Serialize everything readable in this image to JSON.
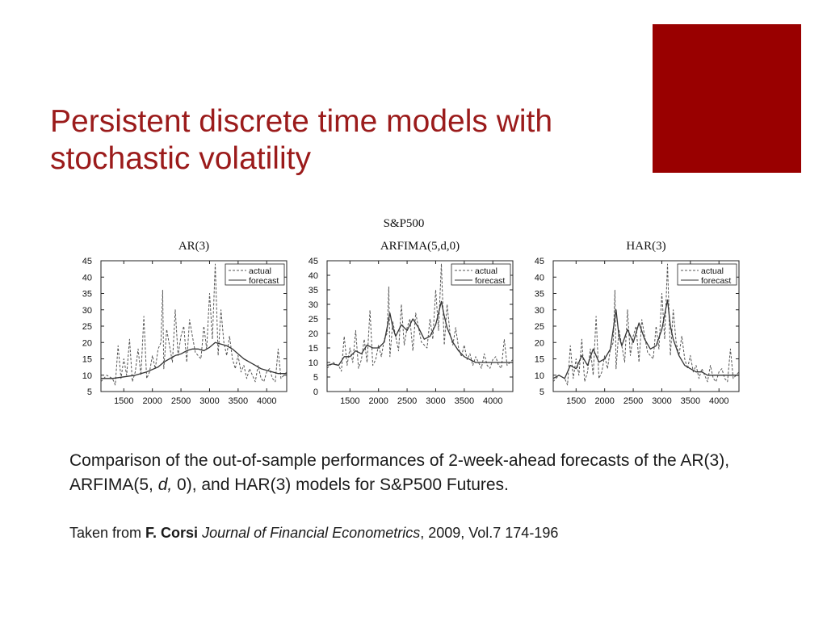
{
  "slide": {
    "title_line1": "Persistent discrete time models with",
    "title_line2": "stochastic volatility",
    "title_color": "#9b1b1b",
    "accent_color": "#990000"
  },
  "figure": {
    "title": "S&P500"
  },
  "chart_data": [
    {
      "type": "line",
      "title": "AR(3)",
      "xlim": [
        1100,
        4350
      ],
      "ylim": [
        5,
        45
      ],
      "xticks": [
        1500,
        2000,
        2500,
        3000,
        3500,
        4000
      ],
      "yticks": [
        5,
        10,
        15,
        20,
        25,
        30,
        35,
        40,
        45
      ],
      "legend": "top-right",
      "series": [
        {
          "name": "actual",
          "style": "dashed",
          "x": [
            1100,
            1200,
            1300,
            1350,
            1400,
            1450,
            1500,
            1550,
            1600,
            1650,
            1700,
            1750,
            1800,
            1850,
            1900,
            1950,
            2000,
            2050,
            2100,
            2150,
            2180,
            2200,
            2250,
            2300,
            2350,
            2400,
            2450,
            2500,
            2550,
            2600,
            2650,
            2700,
            2750,
            2800,
            2850,
            2900,
            2950,
            3000,
            3050,
            3100,
            3150,
            3200,
            3250,
            3300,
            3350,
            3400,
            3450,
            3500,
            3550,
            3600,
            3650,
            3700,
            3750,
            3800,
            3850,
            3900,
            3950,
            4000,
            4050,
            4100,
            4150,
            4200,
            4250,
            4300,
            4350
          ],
          "y": [
            8,
            10,
            9,
            7,
            19,
            9,
            15,
            10,
            21,
            8,
            11,
            18,
            10,
            28,
            9,
            11,
            16,
            12,
            18,
            20,
            36,
            12,
            24,
            19,
            14,
            30,
            16,
            22,
            25,
            14,
            27,
            22,
            17,
            16,
            15,
            25,
            18,
            35,
            21,
            44,
            16,
            30,
            20,
            16,
            22,
            15,
            12,
            16,
            11,
            13,
            9,
            12,
            10,
            8,
            13,
            9,
            8,
            11,
            12,
            9,
            8,
            18,
            9,
            10,
            11
          ]
        },
        {
          "name": "forecast",
          "style": "solid",
          "x": [
            1100,
            1300,
            1500,
            1700,
            1900,
            2100,
            2200,
            2300,
            2400,
            2500,
            2600,
            2700,
            2800,
            2900,
            3000,
            3100,
            3200,
            3300,
            3400,
            3500,
            3600,
            3700,
            3800,
            3900,
            4000,
            4100,
            4200,
            4300,
            4350
          ],
          "y": [
            9,
            9,
            9.5,
            10,
            11,
            12.5,
            14,
            15,
            16,
            16.5,
            17.5,
            18,
            18,
            17.5,
            18.5,
            20,
            19.5,
            19,
            18,
            16.5,
            15,
            14,
            13,
            12,
            11.5,
            11,
            10.5,
            10.5,
            10.5
          ]
        }
      ]
    },
    {
      "type": "line",
      "title": "ARFIMA(5,d,0)",
      "xlim": [
        1100,
        4350
      ],
      "ylim": [
        0,
        45
      ],
      "xticks": [
        1500,
        2000,
        2500,
        3000,
        3500,
        4000
      ],
      "yticks": [
        0,
        5,
        10,
        15,
        20,
        25,
        30,
        35,
        40,
        45
      ],
      "legend": "top-right",
      "series": [
        {
          "name": "actual",
          "style": "dashed",
          "x": [
            1100,
            1200,
            1300,
            1350,
            1400,
            1450,
            1500,
            1550,
            1600,
            1650,
            1700,
            1750,
            1800,
            1850,
            1900,
            1950,
            2000,
            2050,
            2100,
            2150,
            2180,
            2200,
            2250,
            2300,
            2350,
            2400,
            2450,
            2500,
            2550,
            2600,
            2650,
            2700,
            2750,
            2800,
            2850,
            2900,
            2950,
            3000,
            3050,
            3100,
            3150,
            3200,
            3250,
            3300,
            3350,
            3400,
            3450,
            3500,
            3550,
            3600,
            3650,
            3700,
            3750,
            3800,
            3850,
            3900,
            3950,
            4000,
            4050,
            4100,
            4150,
            4200,
            4250,
            4300,
            4350
          ],
          "y": [
            8,
            10,
            9,
            7,
            19,
            9,
            15,
            10,
            21,
            8,
            11,
            18,
            10,
            28,
            9,
            11,
            16,
            12,
            18,
            20,
            36,
            12,
            24,
            19,
            14,
            30,
            16,
            22,
            25,
            14,
            27,
            22,
            17,
            16,
            15,
            25,
            18,
            35,
            21,
            44,
            16,
            30,
            20,
            16,
            22,
            15,
            12,
            16,
            11,
            13,
            9,
            12,
            10,
            8,
            13,
            9,
            8,
            11,
            12,
            9,
            8,
            18,
            9,
            10,
            11
          ]
        },
        {
          "name": "forecast",
          "style": "solid",
          "x": [
            1100,
            1200,
            1300,
            1400,
            1500,
            1600,
            1700,
            1800,
            1900,
            2000,
            2100,
            2200,
            2250,
            2300,
            2400,
            2500,
            2600,
            2700,
            2800,
            2900,
            3000,
            3100,
            3150,
            3200,
            3300,
            3400,
            3500,
            3600,
            3700,
            3800,
            3900,
            4000,
            4100,
            4200,
            4300,
            4350
          ],
          "y": [
            9,
            9.5,
            9,
            12,
            12,
            14,
            13,
            16,
            15,
            15,
            17,
            27,
            22,
            19,
            23,
            21,
            25,
            22,
            18,
            19,
            23,
            31,
            26,
            22,
            17,
            14,
            12,
            11,
            10,
            10,
            10,
            10,
            10,
            10,
            10,
            10
          ]
        }
      ]
    },
    {
      "type": "line",
      "title": "HAR(3)",
      "xlim": [
        1100,
        4350
      ],
      "ylim": [
        5,
        45
      ],
      "xticks": [
        1500,
        2000,
        2500,
        3000,
        3500,
        4000
      ],
      "yticks": [
        5,
        10,
        15,
        20,
        25,
        30,
        35,
        40,
        45
      ],
      "legend": "top-right",
      "series": [
        {
          "name": "actual",
          "style": "dashed",
          "x": [
            1100,
            1200,
            1300,
            1350,
            1400,
            1450,
            1500,
            1550,
            1600,
            1650,
            1700,
            1750,
            1800,
            1850,
            1900,
            1950,
            2000,
            2050,
            2100,
            2150,
            2180,
            2200,
            2250,
            2300,
            2350,
            2400,
            2450,
            2500,
            2550,
            2600,
            2650,
            2700,
            2750,
            2800,
            2850,
            2900,
            2950,
            3000,
            3050,
            3100,
            3150,
            3200,
            3250,
            3300,
            3350,
            3400,
            3450,
            3500,
            3550,
            3600,
            3650,
            3700,
            3750,
            3800,
            3850,
            3900,
            3950,
            4000,
            4050,
            4100,
            4150,
            4200,
            4250,
            4300,
            4350
          ],
          "y": [
            8,
            10,
            9,
            7,
            19,
            9,
            15,
            10,
            21,
            8,
            11,
            18,
            10,
            28,
            9,
            11,
            16,
            12,
            18,
            20,
            36,
            12,
            24,
            19,
            14,
            30,
            16,
            22,
            25,
            14,
            27,
            22,
            17,
            16,
            15,
            25,
            18,
            35,
            21,
            44,
            16,
            30,
            20,
            16,
            22,
            15,
            12,
            16,
            11,
            13,
            9,
            12,
            10,
            8,
            13,
            9,
            8,
            11,
            12,
            9,
            8,
            18,
            9,
            10,
            11
          ]
        },
        {
          "name": "forecast",
          "style": "solid",
          "x": [
            1100,
            1200,
            1300,
            1400,
            1500,
            1600,
            1700,
            1800,
            1900,
            2000,
            2100,
            2200,
            2250,
            2300,
            2400,
            2500,
            2600,
            2700,
            2800,
            2900,
            3000,
            3100,
            3150,
            3200,
            3300,
            3400,
            3500,
            3600,
            3700,
            3800,
            3900,
            4000,
            4100,
            4200,
            4300,
            4350
          ],
          "y": [
            9,
            10,
            9,
            13,
            12,
            16,
            13,
            18,
            14,
            15,
            18,
            30,
            22,
            19,
            24,
            20,
            26,
            21,
            18,
            19,
            24,
            33,
            25,
            21,
            16,
            13,
            12,
            11,
            11,
            10,
            10,
            10,
            10,
            10,
            10,
            10
          ]
        }
      ]
    }
  ],
  "caption": {
    "text_a": "Comparison of the out-of-sample performances of 2-week-ahead forecasts of the AR(3), ARFIMA(5, ",
    "text_d": "d,",
    "text_b": " 0), and HAR(3) models for S&P500 Futures."
  },
  "source": {
    "prefix": "Taken from ",
    "author": "F. Corsi",
    "journal": "Journal of Financial Econometrics",
    "suffix": ", 2009, Vol.7 174-196"
  }
}
